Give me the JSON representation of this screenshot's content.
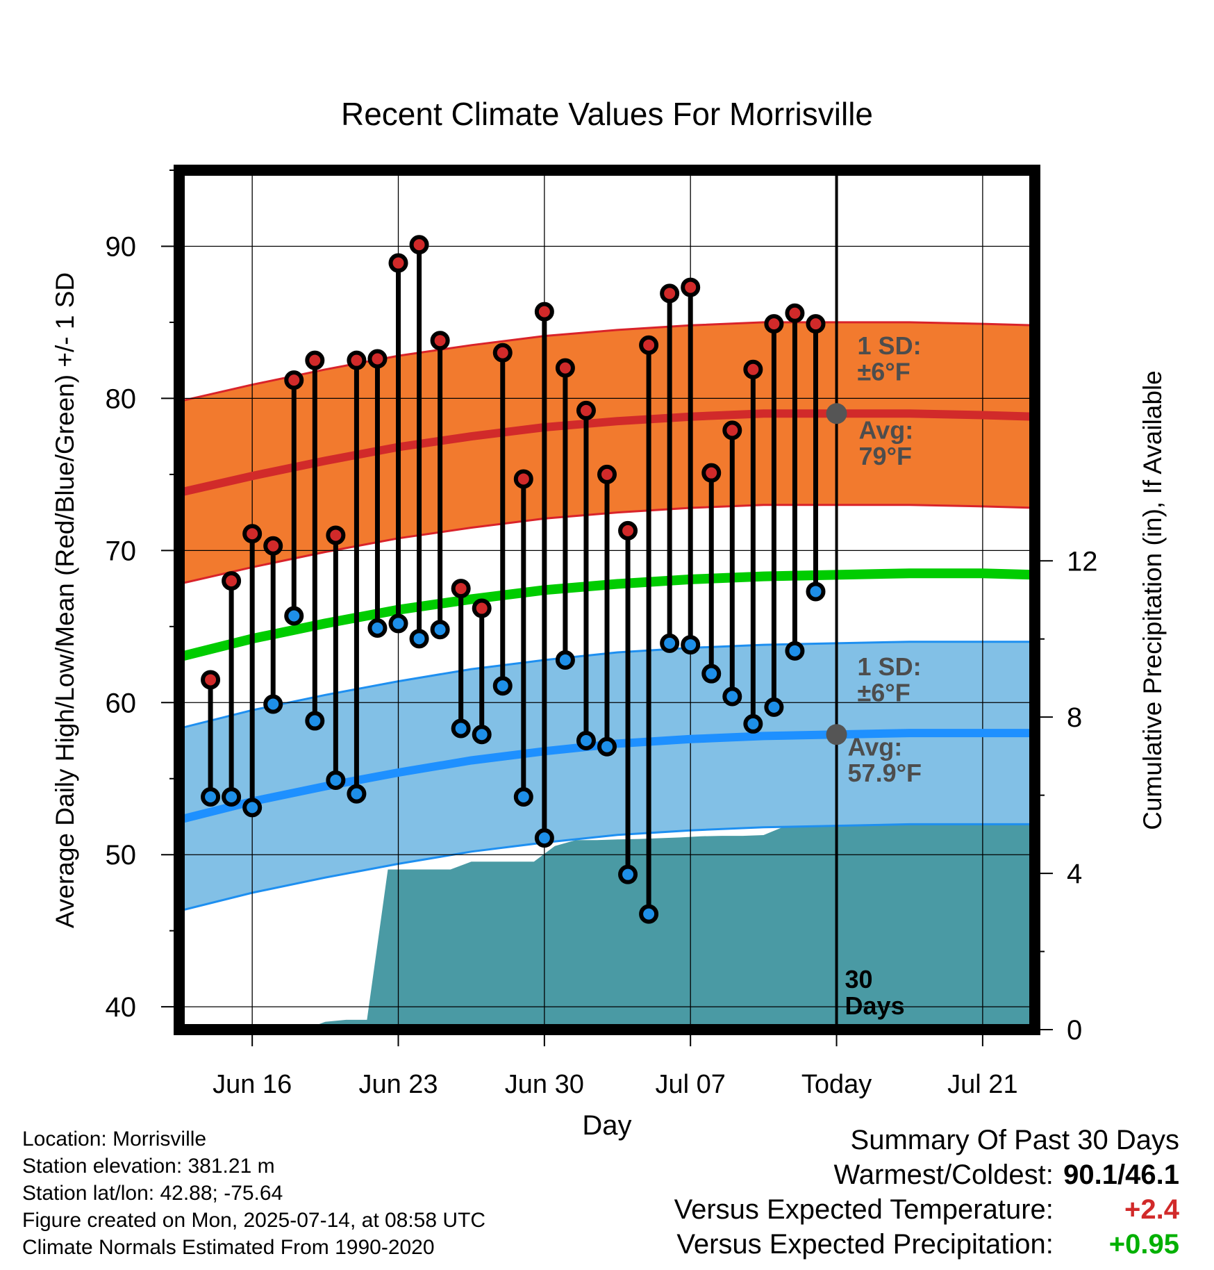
{
  "chart_data": {
    "type": "line",
    "title": "Recent Climate Values For Morrisville",
    "xlabel": "Day",
    "ylabel": "Average Daily High/Low/Mean (Red/Blue/Green) +/- 1 SD",
    "y2label": "Cumulative Precipitation (in), If Available",
    "ylim": [
      38.5,
      95
    ],
    "y2lim": [
      0,
      22
    ],
    "xlim": [
      -3.5,
      37.5
    ],
    "x_tick_labels": [
      {
        "day": 0,
        "label": "Jun 16"
      },
      {
        "day": 7,
        "label": "Jun 23"
      },
      {
        "day": 14,
        "label": "Jun 30"
      },
      {
        "day": 21,
        "label": "Jul 07"
      },
      {
        "day": 28,
        "label": "Today"
      },
      {
        "day": 35,
        "label": "Jul 21"
      }
    ],
    "y_ticks": [
      40,
      50,
      60,
      70,
      80,
      90
    ],
    "y2_ticks": [
      0,
      4,
      8,
      12
    ],
    "grid": true,
    "today_day": 28,
    "days_label": "30\nDays",
    "daily": [
      {
        "date": "Jun 14",
        "high": 61.5,
        "low": 53.8
      },
      {
        "date": "Jun 15",
        "high": 68.0,
        "low": 53.8
      },
      {
        "date": "Jun 16",
        "high": 71.1,
        "low": 53.1
      },
      {
        "date": "Jun 17",
        "high": 70.3,
        "low": 59.9
      },
      {
        "date": "Jun 18",
        "high": 81.2,
        "low": 65.7
      },
      {
        "date": "Jun 19",
        "high": 82.5,
        "low": 58.8
      },
      {
        "date": "Jun 20",
        "high": 71.0,
        "low": 54.9
      },
      {
        "date": "Jun 21",
        "high": 82.5,
        "low": 54.0
      },
      {
        "date": "Jun 22",
        "high": 82.6,
        "low": 64.9
      },
      {
        "date": "Jun 23",
        "high": 88.9,
        "low": 65.2
      },
      {
        "date": "Jun 24",
        "high": 90.1,
        "low": 64.2
      },
      {
        "date": "Jun 25",
        "high": 83.8,
        "low": 64.8
      },
      {
        "date": "Jun 26",
        "high": 67.5,
        "low": 58.3
      },
      {
        "date": "Jun 27",
        "high": 66.2,
        "low": 57.9
      },
      {
        "date": "Jun 28",
        "high": 83.0,
        "low": 61.1
      },
      {
        "date": "Jun 29",
        "high": 74.7,
        "low": 53.8
      },
      {
        "date": "Jun 30",
        "high": 85.7,
        "low": 51.1
      },
      {
        "date": "Jul 01",
        "high": 82.0,
        "low": 62.8
      },
      {
        "date": "Jul 02",
        "high": 79.2,
        "low": 57.5
      },
      {
        "date": "Jul 03",
        "high": 75.0,
        "low": 57.1
      },
      {
        "date": "Jul 04",
        "high": 71.3,
        "low": 48.7
      },
      {
        "date": "Jul 05",
        "high": 83.5,
        "low": 46.1
      },
      {
        "date": "Jul 06",
        "high": 86.9,
        "low": 63.9
      },
      {
        "date": "Jul 07",
        "high": 87.3,
        "low": 63.8
      },
      {
        "date": "Jul 08",
        "high": 75.1,
        "low": 61.9
      },
      {
        "date": "Jul 09",
        "high": 77.9,
        "low": 60.4
      },
      {
        "date": "Jul 10",
        "high": 81.9,
        "low": 58.6
      },
      {
        "date": "Jul 11",
        "high": 84.9,
        "low": 59.7
      },
      {
        "date": "Jul 12",
        "high": 85.6,
        "low": 63.4
      },
      {
        "date": "Jul 13",
        "high": 84.9,
        "low": 67.3
      }
    ],
    "normals": {
      "days": [
        -3.5,
        0,
        3.5,
        7,
        10.5,
        14,
        17.5,
        21,
        24.5,
        28,
        31.5,
        35,
        37.5
      ],
      "high_mean": [
        73.8,
        74.9,
        75.9,
        76.8,
        77.5,
        78.1,
        78.5,
        78.8,
        79.0,
        79.0,
        79.0,
        78.9,
        78.8
      ],
      "high_sd": 6,
      "low_mean": [
        52.3,
        53.5,
        54.5,
        55.4,
        56.2,
        56.8,
        57.3,
        57.6,
        57.8,
        57.9,
        58.0,
        58.0,
        58.0
      ],
      "low_sd": 6,
      "mean": [
        63.0,
        64.2,
        65.2,
        66.1,
        66.8,
        67.4,
        67.8,
        68.1,
        68.3,
        68.4,
        68.5,
        68.5,
        68.4
      ]
    },
    "precipitation_cumulative": {
      "days": [
        -3.5,
        0.5,
        1.5,
        2.5,
        3.5,
        4.5,
        5.5,
        6.5,
        7.5,
        8.5,
        9.5,
        10.5,
        11.5,
        12.5,
        13.5,
        14.5,
        15.5,
        16.5,
        17.5,
        18.5,
        19.5,
        20.5,
        21.5,
        22.5,
        23.5,
        24.5,
        25.5,
        26.5,
        27.5,
        28,
        37.5
      ],
      "values": [
        0,
        0,
        0,
        0,
        0.2,
        0.25,
        0.25,
        4.1,
        4.1,
        4.1,
        4.1,
        4.3,
        4.3,
        4.3,
        4.3,
        4.7,
        4.85,
        4.85,
        4.87,
        4.88,
        4.9,
        4.92,
        4.95,
        4.96,
        4.96,
        4.98,
        5.2,
        5.25,
        5.35,
        5.37,
        5.37
      ]
    },
    "annotations": {
      "high_sd_label": "1 SD:\n±6°F",
      "high_avg_label": "Avg:\n79°F",
      "low_sd_label": "1 SD:\n±6°F",
      "low_avg_label": "Avg:\n57.9°F",
      "high_avg_value": 79,
      "low_avg_value": 57.9
    },
    "colors": {
      "high_band": "#f27a2e",
      "high_band_edge": "#d9232a",
      "high_line": "#d12a2a",
      "low_band": "#82c0e6",
      "low_band_edge": "#1e8ff0",
      "low_line": "#1e90ff",
      "mean_line": "#00cc00",
      "precip": "#4a9aa4",
      "high_dot": "#d12a2a",
      "low_dot": "#1e8fe8",
      "annotation": "#4d4d4d"
    }
  },
  "info": {
    "location": "Location: Morrisville",
    "elevation": "Station elevation: 381.21 m",
    "latlon": "Station lat/lon: 42.88; -75.64",
    "created": "Figure created on Mon, 2025-07-14, at 08:58 UTC",
    "normals": "Climate Normals Estimated From 1990-2020"
  },
  "summary": {
    "title": "Summary Of Past 30 Days",
    "warm_cold_label": "Warmest/Coldest:",
    "warm_cold_value": "90.1/46.1",
    "temp_label": "Versus Expected Temperature:",
    "temp_value": "+2.4",
    "temp_color": "#d12a2a",
    "precip_label": "Versus Expected Precipitation:",
    "precip_value": "+0.95",
    "precip_color": "#00b000"
  }
}
